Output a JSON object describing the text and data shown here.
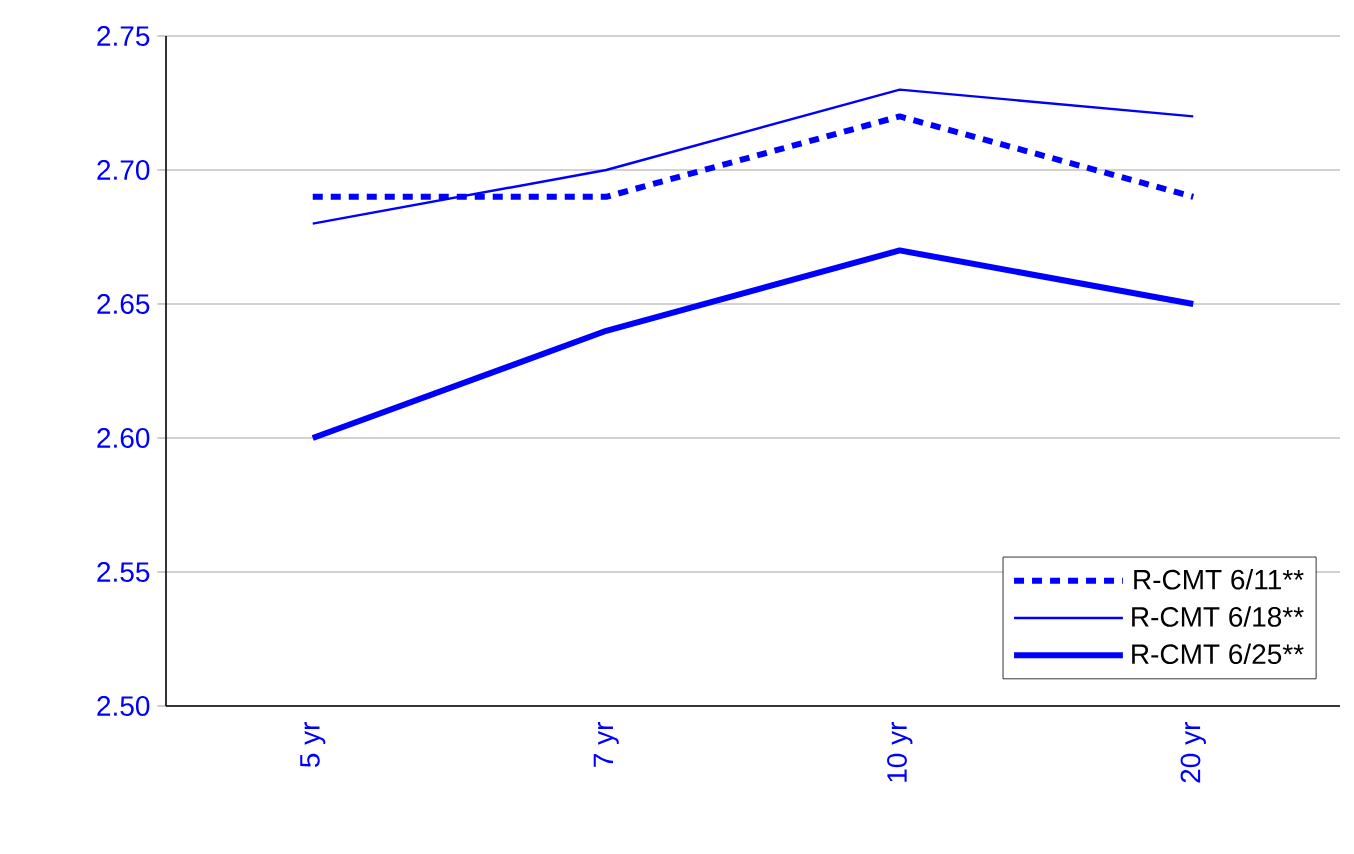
{
  "chart_data": {
    "type": "line",
    "categories": [
      "5 yr",
      "7 yr",
      "10 yr",
      "20 yr"
    ],
    "series": [
      {
        "name": "R-CMT 6/11**",
        "color": "#0000ff",
        "line_style": "dashed",
        "values": [
          2.69,
          2.69,
          2.72,
          2.69
        ]
      },
      {
        "name": "R-CMT 6/18**",
        "color": "#0000ff",
        "line_style": "solid",
        "values": [
          2.68,
          2.7,
          2.73,
          2.72
        ]
      },
      {
        "name": "R-CMT 6/25**",
        "color": "#0000ff",
        "line_style": "solid",
        "values": [
          2.6,
          2.64,
          2.67,
          2.65
        ]
      }
    ],
    "ylim": [
      2.5,
      2.75
    ],
    "yticks": [
      {
        "value": 2.5,
        "label": "2.50"
      },
      2.55,
      {
        "value": 2.6,
        "label": "2.60"
      },
      2.65,
      {
        "value": 2.7,
        "label": "2.70"
      },
      2.75
    ],
    "grid": "y",
    "legend": "bottom right",
    "marker": "none"
  }
}
